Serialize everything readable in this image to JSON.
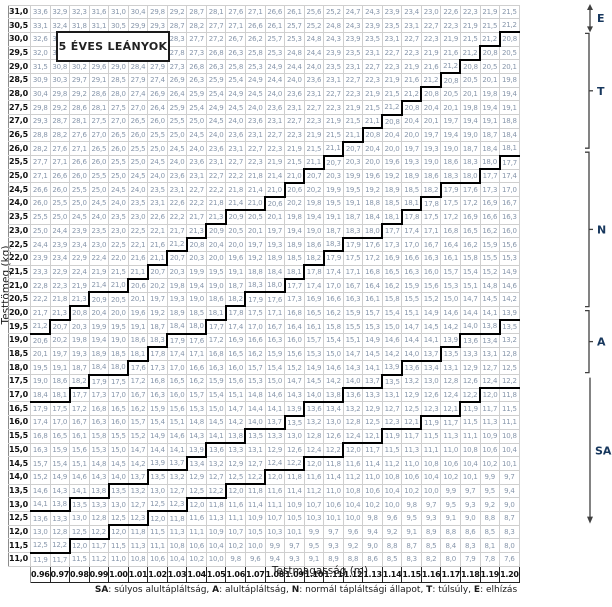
{
  "chart_data": {
    "type": "table",
    "title": "5 ÉVES LEÁNYOK",
    "xlabel": "Testmagasság (m)",
    "ylabel": "Testtömeg (kg)",
    "x_heights_m": [
      "0.96",
      "0.97",
      "0.98",
      "0.99",
      "1.00",
      "1.01",
      "1.02",
      "1.03",
      "1.04",
      "1.05",
      "1.06",
      "1.07",
      "1.08",
      "1.09",
      "1.10",
      "1.11",
      "1.12",
      "1.13",
      "1.14",
      "1.15",
      "1.16",
      "1.17",
      "1.18",
      "1.19",
      "1.20"
    ],
    "y_weights_kg": [
      31.0,
      30.5,
      30.0,
      29.5,
      29.0,
      28.5,
      28.0,
      27.5,
      27.0,
      26.5,
      26.0,
      25.5,
      25.0,
      24.5,
      24.0,
      23.5,
      23.0,
      22.5,
      22.0,
      21.5,
      21.0,
      20.5,
      20.0,
      19.5,
      19.0,
      18.5,
      18.0,
      17.5,
      17.0,
      16.5,
      16.0,
      15.5,
      15.0,
      14.5,
      14.0,
      13.5,
      13.0,
      12.5,
      12.0,
      11.5,
      11.0
    ],
    "cell_value_rule": "cell = weight_kg / height_m^2 (BMI), rounded to 1 decimal, displayed with decimal comma",
    "category_rule_on_displayed_value": {
      "E": ">= 21.0",
      "T": "18.0 - 20.9",
      "N": "13.7 - 17.9",
      "A": "12.1 - 13.6",
      "SA": "< 12.1"
    },
    "boundary_style": "thick black stair-step lines between category regions"
  },
  "table": {
    "weights": [
      31.0,
      30.5,
      30.0,
      29.5,
      29.0,
      28.5,
      28.0,
      27.5,
      27.0,
      26.5,
      26.0,
      25.5,
      25.0,
      24.5,
      24.0,
      23.5,
      23.0,
      22.5,
      22.0,
      21.5,
      21.0,
      20.5,
      20.0,
      19.5,
      19.0,
      18.5,
      18.0,
      17.5,
      17.0,
      16.5,
      16.0,
      15.5,
      15.0,
      14.5,
      14.0,
      13.5,
      13.0,
      12.5,
      12.0,
      11.5,
      11.0
    ],
    "heights": [
      "0.96",
      "0.97",
      "0.98",
      "0.99",
      "1.00",
      "1.01",
      "1.02",
      "1.03",
      "1.04",
      "1.05",
      "1.06",
      "1.07",
      "1.08",
      "1.09",
      "1.10",
      "1.11",
      "1.12",
      "1.13",
      "1.14",
      "1.15",
      "1.16",
      "1.17",
      "1.18",
      "1.19",
      "1.20"
    ]
  },
  "title": "5 ÉVES LEÁNYOK",
  "x_axis_label": "Testmagasság (m)",
  "y_axis_label": "Testtömeg (kg)",
  "categories": {
    "thresholds": {
      "E": 21.0,
      "T": 18.0,
      "N": 13.7,
      "A": 12.1
    },
    "order": [
      "E",
      "T",
      "N",
      "A",
      "SA"
    ]
  },
  "annotations": [
    {
      "code": "E",
      "style": "double-arrow",
      "from_weight": 31.0,
      "to_weight": 30.5
    },
    {
      "code": "T",
      "style": "bracket",
      "from_weight": 30.0,
      "to_weight": 26.0
    },
    {
      "code": "N",
      "style": "bracket",
      "from_weight": 25.5,
      "to_weight": 20.0
    },
    {
      "code": "A",
      "style": "bracket",
      "from_weight": 19.5,
      "to_weight": 17.5
    },
    {
      "code": "SA",
      "style": "arrow-down",
      "from_weight": 17.0,
      "to_weight": 11.0
    }
  ],
  "caption": {
    "items": [
      {
        "key": "SA",
        "desc": "súlyos alultápláltság"
      },
      {
        "key": "A",
        "desc": "alultápláltság"
      },
      {
        "key": "N",
        "desc": "normál tápláltsági állapot"
      },
      {
        "key": "T",
        "desc": "túlsúly"
      },
      {
        "key": "E",
        "desc": "elhízás"
      }
    ]
  },
  "colors": {
    "cell_text": "#8796ab",
    "label_text": "#111111",
    "annotation_label": "#17375d",
    "annotation_stroke": "#404040",
    "boundary": "#000000",
    "grid": "#cfcfcf"
  }
}
